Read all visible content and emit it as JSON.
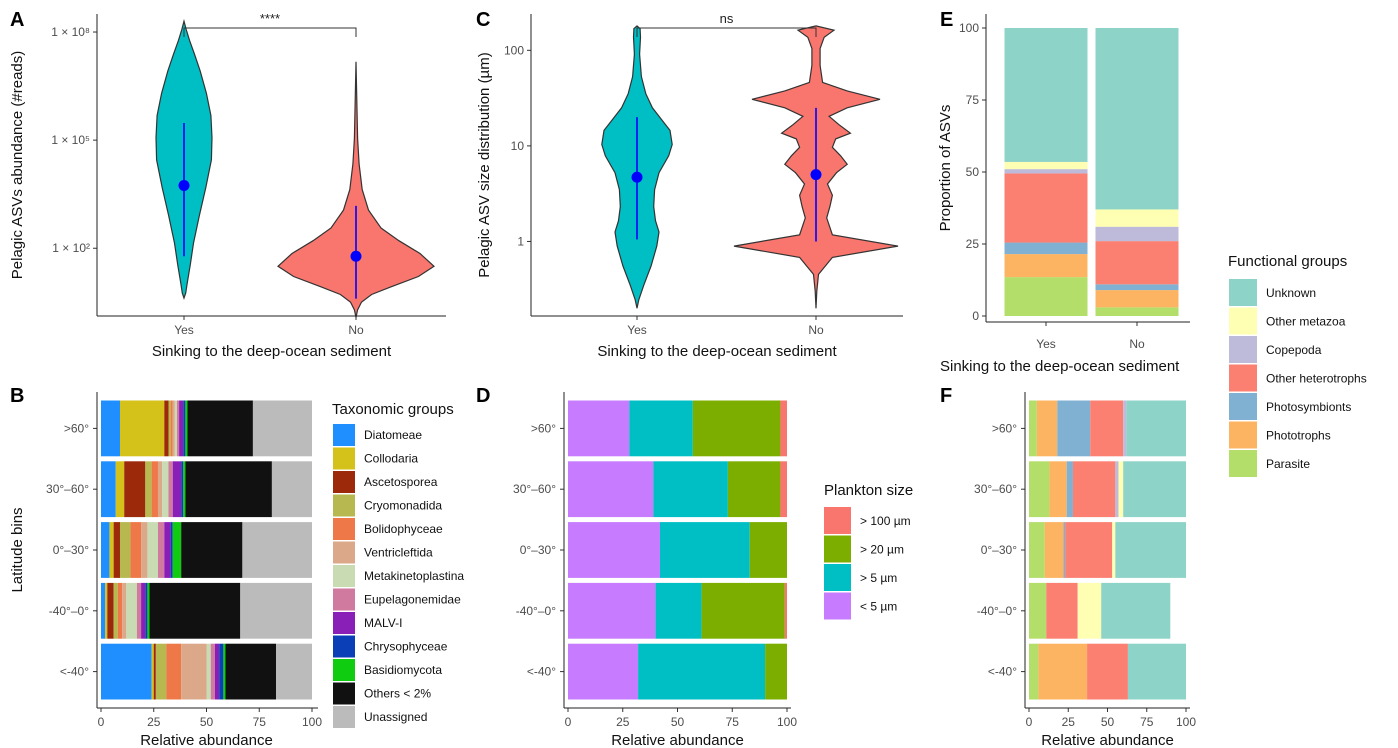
{
  "colors": {
    "yes": "#00BFC4",
    "no": "#F8766D",
    "point": "#0000FF"
  },
  "chart_data": [
    {
      "panel": "A",
      "type": "violin",
      "comparison": "****",
      "xlabel": "Sinking to the deep-ocean sediment",
      "ylabel": "Pelagic ASVs abundance (#reads)",
      "yscale": "log",
      "yticks": [
        {
          "value": 100,
          "label": "1 × 10²"
        },
        {
          "value": 100000,
          "label": "1 × 10⁵"
        },
        {
          "value": 100000000,
          "label": "1 × 10⁸"
        }
      ],
      "categories": [
        "Yes",
        "No"
      ],
      "median": [
        5500,
        60
      ],
      "range_low": [
        60,
        4
      ],
      "range_high": [
        300000,
        1500
      ],
      "extent_min": [
        4,
        1.2
      ],
      "extent_max": [
        200000000,
        15000000
      ]
    },
    {
      "panel": "B",
      "type": "stacked-bar-horizontal",
      "xlabel": "Relative abundance",
      "ylabel": "Latitude bins",
      "xticks": [
        0,
        25,
        50,
        75,
        100
      ],
      "categories": [
        ">60°",
        "30°–60°",
        "0°–30°",
        "-40°–0°",
        "<-40°"
      ],
      "legend_title": "Taxonomic groups",
      "series": [
        {
          "name": "Diatomeae",
          "color": "#1F8FFF",
          "values": [
            9,
            7,
            4,
            2,
            24
          ]
        },
        {
          "name": "Collodaria",
          "color": "#D4C21A",
          "values": [
            21,
            4,
            2,
            1,
            1
          ]
        },
        {
          "name": "Ascetosporea",
          "color": "#9C2A0A",
          "values": [
            2,
            10,
            3,
            3,
            1
          ]
        },
        {
          "name": "Cryomonadida",
          "color": "#B8B850",
          "values": [
            1,
            3,
            5,
            2,
            5
          ]
        },
        {
          "name": "Bolidophyceae",
          "color": "#EE7848",
          "values": [
            1,
            3,
            5,
            2,
            7
          ]
        },
        {
          "name": "Ventricleftida",
          "color": "#DCA88A",
          "values": [
            1,
            2,
            3,
            2,
            12
          ]
        },
        {
          "name": "Metakinetoplastina",
          "color": "#C8DBB3",
          "values": [
            1,
            3,
            5,
            5,
            2
          ]
        },
        {
          "name": "Eupelagonemidae",
          "color": "#D07AA0",
          "values": [
            1,
            2,
            3,
            2,
            2
          ]
        },
        {
          "name": "MALV-I",
          "color": "#8A1FB8",
          "values": [
            2,
            4,
            3,
            2,
            2
          ]
        },
        {
          "name": "Chrysophyceae",
          "color": "#0A3FB8",
          "values": [
            1,
            1,
            1,
            1,
            2
          ]
        },
        {
          "name": "Basidiomycota",
          "color": "#10CC10",
          "values": [
            1,
            1,
            4,
            1,
            1
          ]
        },
        {
          "name": "Others < 2%",
          "color": "#111111",
          "values": [
            31,
            41,
            29,
            43,
            24
          ]
        },
        {
          "name": "Unassigned",
          "color": "#BBBBBB",
          "values": [
            28,
            19,
            33,
            34,
            17
          ]
        }
      ]
    },
    {
      "panel": "C",
      "type": "violin",
      "comparison": "ns",
      "xlabel": "Sinking to the deep-ocean sediment",
      "ylabel": "Pelagic ASV size distribution (µm)",
      "yscale": "log",
      "yticks": [
        {
          "value": 1,
          "label": "1"
        },
        {
          "value": 10,
          "label": "10"
        },
        {
          "value": 100,
          "label": "100"
        }
      ],
      "categories": [
        "Yes",
        "No"
      ],
      "median": [
        4.7,
        5
      ],
      "range_low": [
        1.05,
        1
      ],
      "range_high": [
        20,
        25
      ],
      "extent_min": [
        0.2,
        0.2
      ],
      "extent_max": [
        180,
        180
      ]
    },
    {
      "panel": "D",
      "type": "stacked-bar-horizontal",
      "xlabel": "Relative abundance",
      "xticks": [
        0,
        25,
        50,
        75,
        100
      ],
      "categories": [
        ">60°",
        "30°–60°",
        "0°–30°",
        "-40°–0°",
        "<-40°"
      ],
      "legend_title": "Plankton size",
      "series": [
        {
          "name": "< 5 µm",
          "color": "#C77CFF",
          "values": [
            28,
            39,
            42,
            40,
            32
          ]
        },
        {
          "name": "> 5 µm",
          "color": "#00BFC4",
          "values": [
            29,
            34,
            41,
            21,
            58
          ]
        },
        {
          "name": "> 20 µm",
          "color": "#7CAE00",
          "values": [
            40,
            24,
            17,
            38,
            10
          ]
        },
        {
          "name": "> 100 µm",
          "color": "#F8766D",
          "values": [
            3,
            3,
            0,
            1,
            0
          ]
        }
      ]
    },
    {
      "panel": "E",
      "type": "stacked-bar",
      "xlabel": "Sinking to the deep-ocean sediment",
      "ylabel": "Proportion of ASVs",
      "yticks": [
        0,
        25,
        50,
        75,
        100
      ],
      "categories": [
        "Yes",
        "No"
      ],
      "legend_title": "Functional groups",
      "series": [
        {
          "name": "Parasite",
          "color": "#B3DE69",
          "values": [
            13.5,
            3
          ]
        },
        {
          "name": "Phototrophs",
          "color": "#FDB462",
          "values": [
            8,
            6
          ]
        },
        {
          "name": "Photosymbionts",
          "color": "#80B1D3",
          "values": [
            4,
            2
          ]
        },
        {
          "name": "Other heterotrophs",
          "color": "#FB8072",
          "values": [
            24,
            15
          ]
        },
        {
          "name": "Copepoda",
          "color": "#BEBADA",
          "values": [
            1.5,
            5
          ]
        },
        {
          "name": "Other metazoa",
          "color": "#FFFFB3",
          "values": [
            2.5,
            6
          ]
        },
        {
          "name": "Unknown",
          "color": "#8DD3C7",
          "values": [
            46.5,
            63
          ]
        }
      ]
    },
    {
      "panel": "F",
      "type": "stacked-bar-horizontal",
      "xlabel": "Relative abundance",
      "xticks": [
        0,
        25,
        50,
        75,
        100
      ],
      "categories": [
        ">60°",
        "30°–60°",
        "0°–30°",
        "-40°–0°",
        "<-40°"
      ],
      "series": [
        {
          "name": "Parasite",
          "color": "#B3DE69",
          "values": [
            5,
            13,
            10,
            11,
            6
          ]
        },
        {
          "name": "Phototrophs",
          "color": "#FDB462",
          "values": [
            13,
            11,
            12,
            0,
            31
          ]
        },
        {
          "name": "Photosymbionts",
          "color": "#80B1D3",
          "values": [
            21,
            4,
            1,
            0,
            0
          ]
        },
        {
          "name": "Other heterotrophs",
          "color": "#FB8072",
          "values": [
            21,
            27,
            30,
            20,
            26
          ]
        },
        {
          "name": "Copepoda",
          "color": "#BEBADA",
          "values": [
            2,
            2,
            0,
            0,
            0
          ]
        },
        {
          "name": "Other metazoa",
          "color": "#FFFFB3",
          "values": [
            0,
            3,
            2,
            15,
            0
          ]
        },
        {
          "name": "Unknown",
          "color": "#8DD3C7",
          "values": [
            38,
            40,
            45,
            44,
            37
          ]
        }
      ]
    }
  ]
}
